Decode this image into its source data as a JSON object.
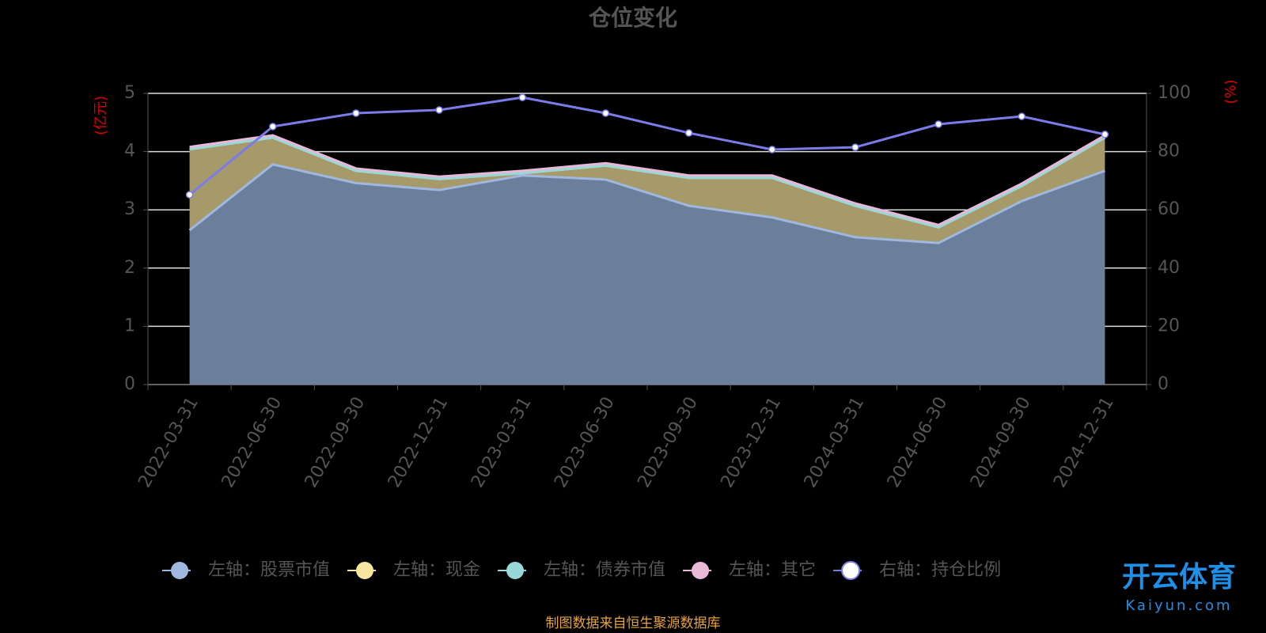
{
  "chart_data": {
    "type": "area",
    "stacked": true,
    "title": "仓位变化",
    "y_label": "(亿元)",
    "y2_label": "(%)",
    "categories": [
      "2022-03-31",
      "2022-06-30",
      "2022-09-30",
      "2022-12-31",
      "2023-03-31",
      "2023-06-30",
      "2023-09-30",
      "2023-12-31",
      "2024-03-31",
      "2024-06-30",
      "2024-09-30",
      "2024-12-31"
    ],
    "series": [
      {
        "name": "左轴：股票市值",
        "color": "#a0b8e0",
        "fill": "#6b7f9d",
        "values": [
          2.65,
          3.78,
          3.46,
          3.34,
          3.59,
          3.52,
          3.07,
          2.87,
          2.53,
          2.43,
          3.15,
          3.67
        ]
      },
      {
        "name": "左轴：现金",
        "color": "#f8e6a0",
        "fill": "#a6996a",
        "values": [
          1.39,
          0.46,
          0.21,
          0.19,
          0.04,
          0.24,
          0.48,
          0.68,
          0.54,
          0.27,
          0.26,
          0.57
        ]
      },
      {
        "name": "左轴：债券市值",
        "color": "#98d8d8",
        "fill": "#8fb3b0",
        "values": [
          0,
          0,
          0,
          0,
          0,
          0,
          0,
          0,
          0,
          0,
          0,
          0
        ]
      },
      {
        "name": "左轴：其它",
        "color": "#e8b8d8",
        "fill": "#b89aa0",
        "values": [
          0.04,
          0.04,
          0.04,
          0.04,
          0.04,
          0.04,
          0.04,
          0.04,
          0.04,
          0.04,
          0.04,
          0.04
        ]
      },
      {
        "name": "右轴：持仓比例",
        "color": "#7b7bea",
        "axis": "y2",
        "type": "line",
        "values": [
          65.2,
          88.6,
          93.2,
          94.3,
          98.6,
          93.2,
          86.4,
          80.7,
          81.5,
          89.4,
          92.1,
          85.9
        ]
      }
    ],
    "ylim": [
      0,
      5
    ],
    "yticks": [
      0,
      1,
      2,
      3,
      4,
      5
    ],
    "y2lim": [
      0,
      100
    ],
    "y2ticks": [
      0,
      20,
      40,
      60,
      80,
      100
    ],
    "grid": true,
    "legend": "bottom",
    "source": "制图数据来自恒生聚源数据库"
  },
  "watermark": {
    "brand": "开云体育",
    "url": "Kaiyun.com"
  }
}
